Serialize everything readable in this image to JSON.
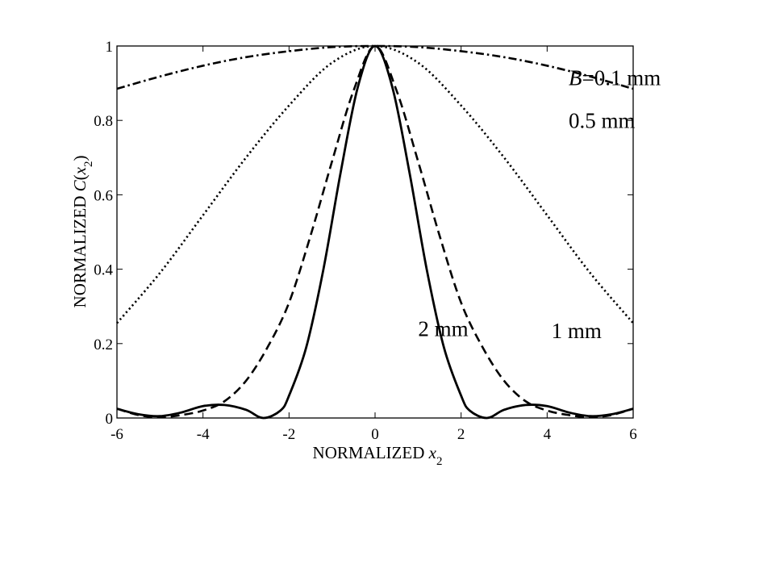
{
  "chart_data": {
    "type": "line",
    "title": "",
    "xlabel": {
      "prefix": "NORMALIZED ",
      "var": "x",
      "sub": "2"
    },
    "ylabel": {
      "prefix": "NORMALIZED ",
      "func": "C",
      "var": "x",
      "sub": "2"
    },
    "xlim": [
      -6,
      6
    ],
    "ylim": [
      0,
      1
    ],
    "xticks": [
      -6,
      -4,
      -2,
      0,
      2,
      4,
      6
    ],
    "yticks": [
      0,
      0.2,
      0.4,
      0.6,
      0.8,
      1
    ],
    "xtick_labels": [
      "-6",
      "-4",
      "-2",
      "0",
      "2",
      "4",
      "6"
    ],
    "ytick_labels": [
      "0",
      "0.2",
      "0.4",
      "0.6",
      "0.8",
      "1"
    ],
    "grid": false,
    "series": [
      {
        "label": "B=0.1 mm",
        "style": "dashdot",
        "x": [
          -6,
          -5,
          -4,
          -3,
          -2,
          -1,
          0,
          1,
          2,
          3,
          4,
          5,
          6
        ],
        "y": [
          0.885,
          0.918,
          0.947,
          0.97,
          0.986,
          0.997,
          1.0,
          0.997,
          0.986,
          0.97,
          0.947,
          0.918,
          0.885
        ]
      },
      {
        "label": "0.5 mm",
        "style": "dotted",
        "x": [
          -6,
          -5,
          -4,
          -3,
          -2,
          -1,
          0,
          1,
          2,
          3,
          4,
          5,
          6
        ],
        "y": [
          0.255,
          0.39,
          0.545,
          0.7,
          0.84,
          0.955,
          1.0,
          0.955,
          0.84,
          0.7,
          0.545,
          0.39,
          0.255
        ]
      },
      {
        "label": "1 mm",
        "style": "dashed",
        "x": [
          -6,
          -5.5,
          -5,
          -4.5,
          -4,
          -3.5,
          -3,
          -2.5,
          -2,
          -1.5,
          -1,
          -0.5,
          0,
          0.5,
          1,
          1.5,
          2,
          2.5,
          3,
          3.5,
          4,
          4.5,
          5,
          5.5,
          6
        ],
        "y": [
          0.025,
          0.008,
          0.002,
          0.008,
          0.02,
          0.045,
          0.1,
          0.19,
          0.31,
          0.49,
          0.69,
          0.88,
          1.0,
          0.88,
          0.69,
          0.49,
          0.31,
          0.19,
          0.1,
          0.045,
          0.02,
          0.008,
          0.002,
          0.008,
          0.025
        ]
      },
      {
        "label": "2 mm",
        "style": "solid",
        "x": [
          -6,
          -5.5,
          -5,
          -4.5,
          -4,
          -3.5,
          -3,
          -2.6,
          -2.2,
          -2,
          -1.6,
          -1.2,
          -0.8,
          -0.4,
          0,
          0.4,
          0.8,
          1.2,
          1.6,
          2,
          2.2,
          2.6,
          3,
          3.5,
          4,
          4.5,
          5,
          5.5,
          6
        ],
        "y": [
          0.025,
          0.01,
          0.005,
          0.015,
          0.032,
          0.035,
          0.022,
          0.0,
          0.02,
          0.06,
          0.19,
          0.4,
          0.66,
          0.89,
          1.0,
          0.89,
          0.66,
          0.4,
          0.19,
          0.06,
          0.02,
          0.0,
          0.022,
          0.035,
          0.032,
          0.015,
          0.005,
          0.01,
          0.025
        ]
      }
    ],
    "annotations": [
      {
        "id": "b01",
        "italic_part": "B",
        "text": "=0.1 mm",
        "x": 4.5,
        "y": 0.895
      },
      {
        "id": "b05",
        "italic_part": "",
        "text": "0.5 mm",
        "x": 4.5,
        "y": 0.78
      },
      {
        "id": "b1",
        "italic_part": "",
        "text": "1 mm",
        "x": 4.1,
        "y": 0.215
      },
      {
        "id": "b2",
        "italic_part": "",
        "text": "2 mm",
        "x": 1.0,
        "y": 0.22
      }
    ]
  }
}
